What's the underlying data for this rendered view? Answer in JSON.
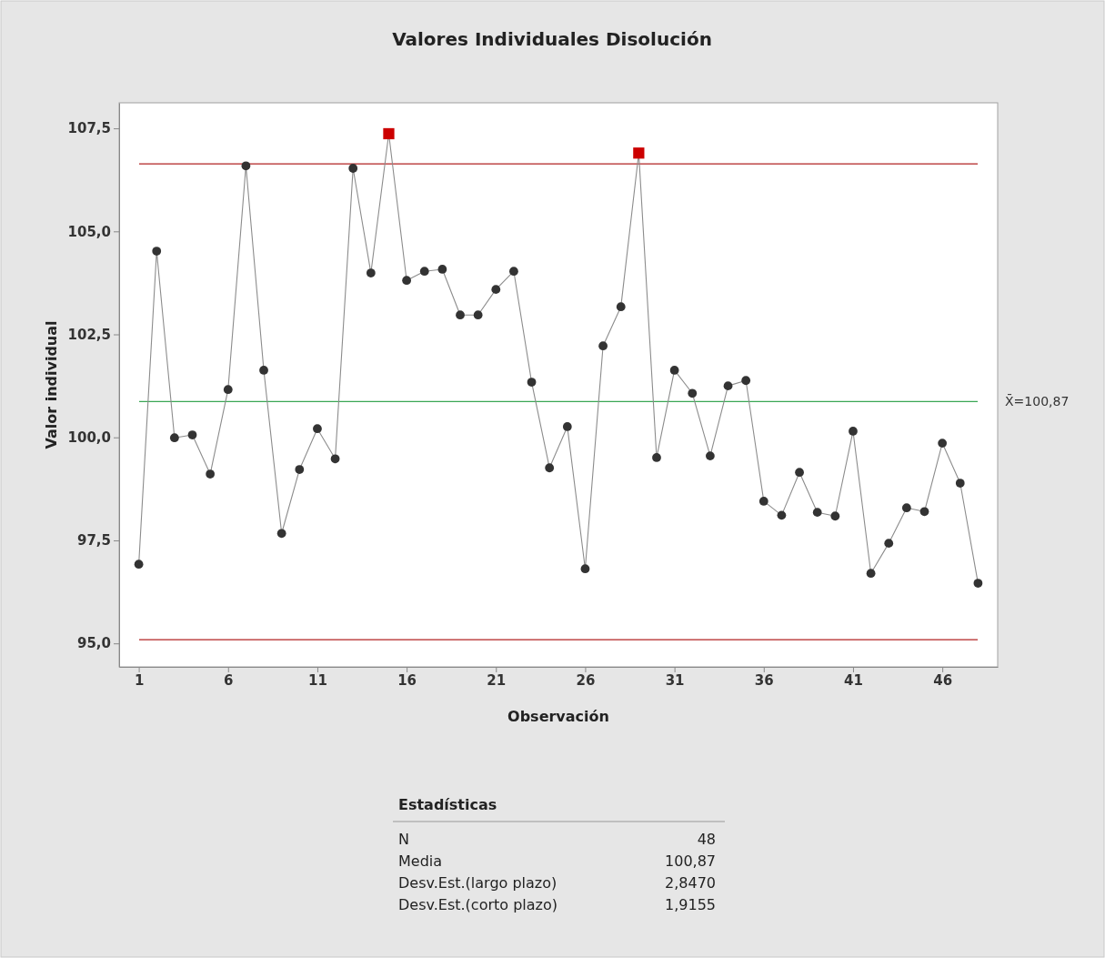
{
  "chart_data": {
    "type": "line",
    "title": "Valores Individuales Disolución",
    "xlabel": "Observación",
    "ylabel": "Valor individual",
    "x": [
      1,
      2,
      3,
      4,
      5,
      6,
      7,
      8,
      9,
      10,
      11,
      12,
      13,
      14,
      15,
      16,
      17,
      18,
      19,
      20,
      21,
      22,
      23,
      24,
      25,
      26,
      27,
      28,
      29,
      30,
      31,
      32,
      33,
      34,
      35,
      36,
      37,
      38,
      39,
      40,
      41,
      42,
      43,
      44,
      45,
      46,
      47,
      48
    ],
    "series": [
      {
        "type": "line",
        "color": "#8c8c8c",
        "marker": "none",
        "values": [
          96.92,
          104.52,
          99.99,
          100.06,
          99.11,
          101.16,
          106.59,
          101.63,
          97.67,
          99.22,
          100.21,
          99.48,
          106.53,
          103.99,
          107.37,
          103.81,
          104.03,
          104.08,
          102.97,
          102.97,
          103.59,
          104.03,
          101.34,
          99.26,
          100.26,
          96.81,
          102.22,
          103.17,
          106.9,
          99.51,
          101.63,
          101.07,
          99.55,
          101.25,
          101.38,
          98.45,
          98.11,
          99.15,
          98.18,
          98.09,
          100.15,
          96.7,
          97.43,
          98.29,
          98.2,
          99.86,
          98.89,
          96.46
        ]
      },
      {
        "type": "scatter",
        "color": "#333333",
        "marker": "circle",
        "values": [
          96.92,
          104.52,
          99.99,
          100.06,
          99.11,
          101.16,
          106.59,
          101.63,
          97.67,
          99.22,
          100.21,
          99.48,
          106.53,
          103.99,
          null,
          103.81,
          104.03,
          104.08,
          102.97,
          102.97,
          103.59,
          104.03,
          101.34,
          99.26,
          100.26,
          96.81,
          102.22,
          103.17,
          null,
          99.51,
          101.63,
          101.07,
          99.55,
          101.25,
          101.38,
          98.45,
          98.11,
          99.15,
          98.18,
          98.09,
          100.15,
          96.7,
          97.43,
          98.29,
          98.2,
          99.86,
          98.89,
          96.46
        ]
      },
      {
        "type": "scatter",
        "color": "#cc0000",
        "marker": "square",
        "x": [
          15,
          29
        ],
        "values": [
          107.37,
          106.9
        ]
      }
    ],
    "xlim": [
      -0.1,
      49.1
    ],
    "xticks": [
      1,
      6,
      11,
      16,
      21,
      26,
      31,
      36,
      41,
      46
    ],
    "ylim": [
      94.43,
      108.12
    ],
    "yticks": [
      {
        "value": 95,
        "label": "95,0"
      },
      {
        "value": 97.5,
        "label": "97,5"
      },
      {
        "value": 100,
        "label": "100,0"
      },
      {
        "value": 102.5,
        "label": "102,5"
      },
      {
        "value": 105,
        "label": "105,0"
      },
      {
        "value": 107.5,
        "label": "107,5"
      }
    ],
    "ref_lines": [
      {
        "axis": "y",
        "value": 106.64,
        "color": "#b22222"
      },
      {
        "axis": "y",
        "value": 100.87,
        "label": "X̄=100,87",
        "color": "#3aa655"
      },
      {
        "axis": "y",
        "value": 95.09,
        "color": "#b22222"
      }
    ],
    "grid": false,
    "annotations": [
      "Estadísticas",
      "N",
      "48",
      "Media",
      "100,87",
      "Desv.Est.(largo plazo)",
      "2,8470",
      "Desv.Est.(corto plazo)",
      "1,9155"
    ]
  }
}
